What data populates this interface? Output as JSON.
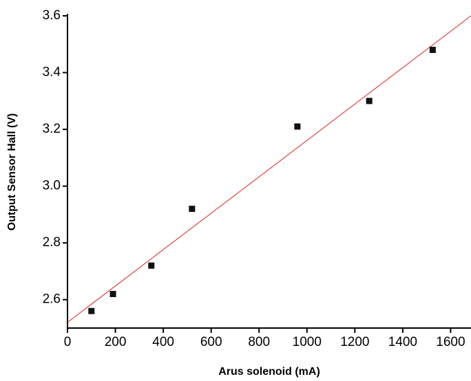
{
  "chart_data": {
    "type": "scatter",
    "x_label": "Arus  solenoid (mA)",
    "y_label": "Output Sensor Hall (V)",
    "x": [
      100,
      190,
      350,
      520,
      960,
      1260,
      1525
    ],
    "values": [
      2.56,
      2.62,
      2.72,
      2.92,
      3.21,
      3.3,
      3.48
    ],
    "color": "#111111",
    "fit_line": {
      "x": [
        0,
        1685
      ],
      "values": [
        2.52,
        3.6
      ],
      "color": "#e02020"
    },
    "xlim": [
      0,
      1685
    ],
    "ylim": [
      2.5,
      3.6
    ],
    "xticks": [
      0,
      200,
      400,
      600,
      800,
      1000,
      1200,
      1400,
      1600
    ],
    "yticks": [
      {
        "value": 2.6,
        "label": "2.6"
      },
      {
        "value": 2.8,
        "label": "2.8"
      },
      {
        "value": 3.0,
        "label": "3.0"
      },
      {
        "value": 3.2,
        "label": "3.2"
      },
      {
        "value": 3.4,
        "label": "3.4"
      },
      {
        "value": 3.6,
        "label": "3.6"
      }
    ],
    "grid": false
  }
}
